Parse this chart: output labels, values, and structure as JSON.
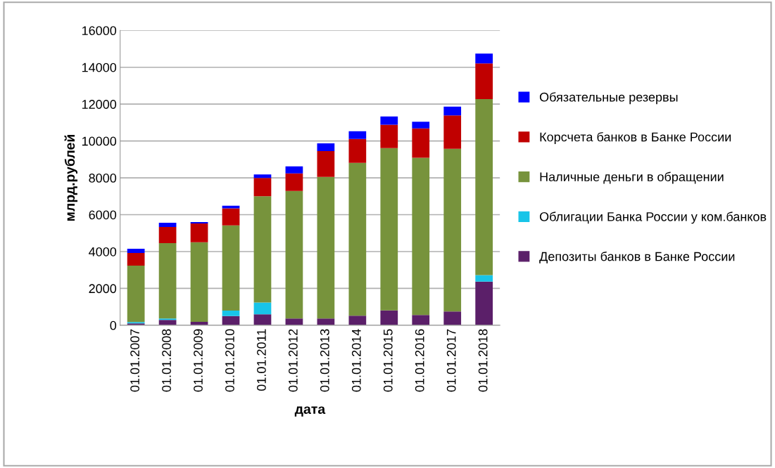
{
  "chart_data": {
    "type": "bar",
    "stacked": true,
    "xlabel": "дата",
    "ylabel": "млрд.рублей",
    "categories": [
      "01.01.2007",
      "01.01.2008",
      "01.01.2009",
      "01.01.2010",
      "01.01.2011",
      "01.01.2012",
      "01.01.2013",
      "01.01.2014",
      "01.01.2015",
      "01.01.2016",
      "01.01.2017",
      "01.01.2018"
    ],
    "series": [
      {
        "name": "Депозиты банков в Банке России",
        "color": "#5b1f69",
        "values": [
          100,
          290,
          190,
          500,
          600,
          370,
          370,
          520,
          810,
          560,
          750,
          2370
        ]
      },
      {
        "name": "Облигации Банка России у ком.банков",
        "color": "#18c4e8",
        "values": [
          80,
          80,
          0,
          300,
          630,
          0,
          0,
          0,
          0,
          0,
          0,
          350
        ]
      },
      {
        "name": "Наличные деньги в обращении",
        "color": "#77933c",
        "values": [
          3060,
          4090,
          4310,
          4620,
          5770,
          6920,
          7680,
          8290,
          8800,
          8530,
          8830,
          9550
        ]
      },
      {
        "name": "Корсчета банков в Банке России",
        "color": "#c00000",
        "values": [
          680,
          870,
          1020,
          920,
          990,
          950,
          1400,
          1300,
          1270,
          1590,
          1810,
          1940
        ]
      },
      {
        "name": "Обязательные резервы",
        "color": "#0000ff",
        "values": [
          230,
          230,
          80,
          150,
          190,
          380,
          420,
          420,
          450,
          360,
          470,
          530
        ]
      }
    ],
    "ylim": [
      0,
      16000
    ],
    "yticks": [
      0,
      2000,
      4000,
      6000,
      8000,
      10000,
      12000,
      14000,
      16000
    ],
    "grid": "y",
    "legend": "right"
  }
}
